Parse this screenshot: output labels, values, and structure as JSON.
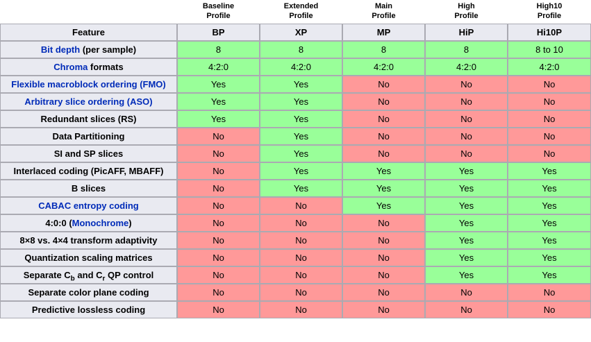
{
  "colors": {
    "yes_bg": "#99FF99",
    "no_bg": "#FF9999",
    "header_bg": "#E9EAF1",
    "border": "#AAAAB2",
    "link_blue": "#002BB8",
    "text": "#000000"
  },
  "chart_data": {
    "type": "table",
    "feature_header": "Feature",
    "profile_names": [
      "Baseline\nProfile",
      "Extended\nProfile",
      "Main\nProfile",
      "High\nProfile",
      "High10\nProfile"
    ],
    "profile_abbrs": [
      "BP",
      "XP",
      "MP",
      "HiP",
      "Hi10P"
    ],
    "rows": [
      {
        "feature_text": "Bit depth (per sample)",
        "segments": [
          {
            "t": "Bit depth",
            "link": true
          },
          {
            "t": " (per sample)"
          }
        ],
        "values": [
          "8",
          "8",
          "8",
          "8",
          "8 to 10"
        ],
        "states": [
          "yes",
          "yes",
          "yes",
          "yes",
          "yes"
        ]
      },
      {
        "feature_text": "Chroma formats",
        "segments": [
          {
            "t": "Chroma",
            "link": true
          },
          {
            "t": " formats"
          }
        ],
        "values": [
          "4:2:0",
          "4:2:0",
          "4:2:0",
          "4:2:0",
          "4:2:0"
        ],
        "states": [
          "yes",
          "yes",
          "yes",
          "yes",
          "yes"
        ]
      },
      {
        "feature_text": "Flexible macroblock ordering (FMO)",
        "segments": [
          {
            "t": "Flexible macroblock ordering (FMO)",
            "link": true
          }
        ],
        "values": [
          "Yes",
          "Yes",
          "No",
          "No",
          "No"
        ],
        "states": [
          "yes",
          "yes",
          "no",
          "no",
          "no"
        ]
      },
      {
        "feature_text": "Arbitrary slice ordering (ASO)",
        "segments": [
          {
            "t": "Arbitrary slice ordering (ASO)",
            "link": true
          }
        ],
        "values": [
          "Yes",
          "Yes",
          "No",
          "No",
          "No"
        ],
        "states": [
          "yes",
          "yes",
          "no",
          "no",
          "no"
        ]
      },
      {
        "feature_text": "Redundant slices (RS)",
        "segments": [
          {
            "t": "Redundant slices (RS)"
          }
        ],
        "values": [
          "Yes",
          "Yes",
          "No",
          "No",
          "No"
        ],
        "states": [
          "yes",
          "yes",
          "no",
          "no",
          "no"
        ]
      },
      {
        "feature_text": "Data Partitioning",
        "segments": [
          {
            "t": "Data Partitioning"
          }
        ],
        "values": [
          "No",
          "Yes",
          "No",
          "No",
          "No"
        ],
        "states": [
          "no",
          "yes",
          "no",
          "no",
          "no"
        ]
      },
      {
        "feature_text": "SI and SP slices",
        "segments": [
          {
            "t": "SI and SP slices"
          }
        ],
        "values": [
          "No",
          "Yes",
          "No",
          "No",
          "No"
        ],
        "states": [
          "no",
          "yes",
          "no",
          "no",
          "no"
        ]
      },
      {
        "feature_text": "Interlaced coding (PicAFF, MBAFF)",
        "segments": [
          {
            "t": "Interlaced coding (PicAFF, MBAFF)"
          }
        ],
        "values": [
          "No",
          "Yes",
          "Yes",
          "Yes",
          "Yes"
        ],
        "states": [
          "no",
          "yes",
          "yes",
          "yes",
          "yes"
        ]
      },
      {
        "feature_text": "B slices",
        "segments": [
          {
            "t": "B slices"
          }
        ],
        "values": [
          "No",
          "Yes",
          "Yes",
          "Yes",
          "Yes"
        ],
        "states": [
          "no",
          "yes",
          "yes",
          "yes",
          "yes"
        ]
      },
      {
        "feature_text": "CABAC entropy coding",
        "segments": [
          {
            "t": "CABAC entropy coding",
            "link": true
          }
        ],
        "values": [
          "No",
          "No",
          "Yes",
          "Yes",
          "Yes"
        ],
        "states": [
          "no",
          "no",
          "yes",
          "yes",
          "yes"
        ]
      },
      {
        "feature_text": "4:0:0 (Monochrome)",
        "segments": [
          {
            "t": "4:0:0 ("
          },
          {
            "t": "Monochrome",
            "link": true
          },
          {
            "t": ")"
          }
        ],
        "values": [
          "No",
          "No",
          "No",
          "Yes",
          "Yes"
        ],
        "states": [
          "no",
          "no",
          "no",
          "yes",
          "yes"
        ]
      },
      {
        "feature_text": "8×8 vs. 4×4 transform adaptivity",
        "segments": [
          {
            "t": "8×8 vs. 4×4 transform adaptivity"
          }
        ],
        "values": [
          "No",
          "No",
          "No",
          "Yes",
          "Yes"
        ],
        "states": [
          "no",
          "no",
          "no",
          "yes",
          "yes"
        ]
      },
      {
        "feature_text": "Quantization scaling matrices",
        "segments": [
          {
            "t": "Quantization scaling matrices"
          }
        ],
        "values": [
          "No",
          "No",
          "No",
          "Yes",
          "Yes"
        ],
        "states": [
          "no",
          "no",
          "no",
          "yes",
          "yes"
        ]
      },
      {
        "feature_text": "Separate Cb and Cr QP control",
        "segments": [
          {
            "t": "Separate C"
          },
          {
            "t": "b",
            "sub": true
          },
          {
            "t": " and C"
          },
          {
            "t": "r",
            "sub": true
          },
          {
            "t": " QP control"
          }
        ],
        "values": [
          "No",
          "No",
          "No",
          "Yes",
          "Yes"
        ],
        "states": [
          "no",
          "no",
          "no",
          "yes",
          "yes"
        ]
      },
      {
        "feature_text": "Separate color plane coding",
        "segments": [
          {
            "t": "Separate color plane coding"
          }
        ],
        "values": [
          "No",
          "No",
          "No",
          "No",
          "No"
        ],
        "states": [
          "no",
          "no",
          "no",
          "no",
          "no"
        ]
      },
      {
        "feature_text": "Predictive lossless coding",
        "segments": [
          {
            "t": "Predictive lossless coding"
          }
        ],
        "values": [
          "No",
          "No",
          "No",
          "No",
          "No"
        ],
        "states": [
          "no",
          "no",
          "no",
          "no",
          "no"
        ]
      }
    ]
  }
}
